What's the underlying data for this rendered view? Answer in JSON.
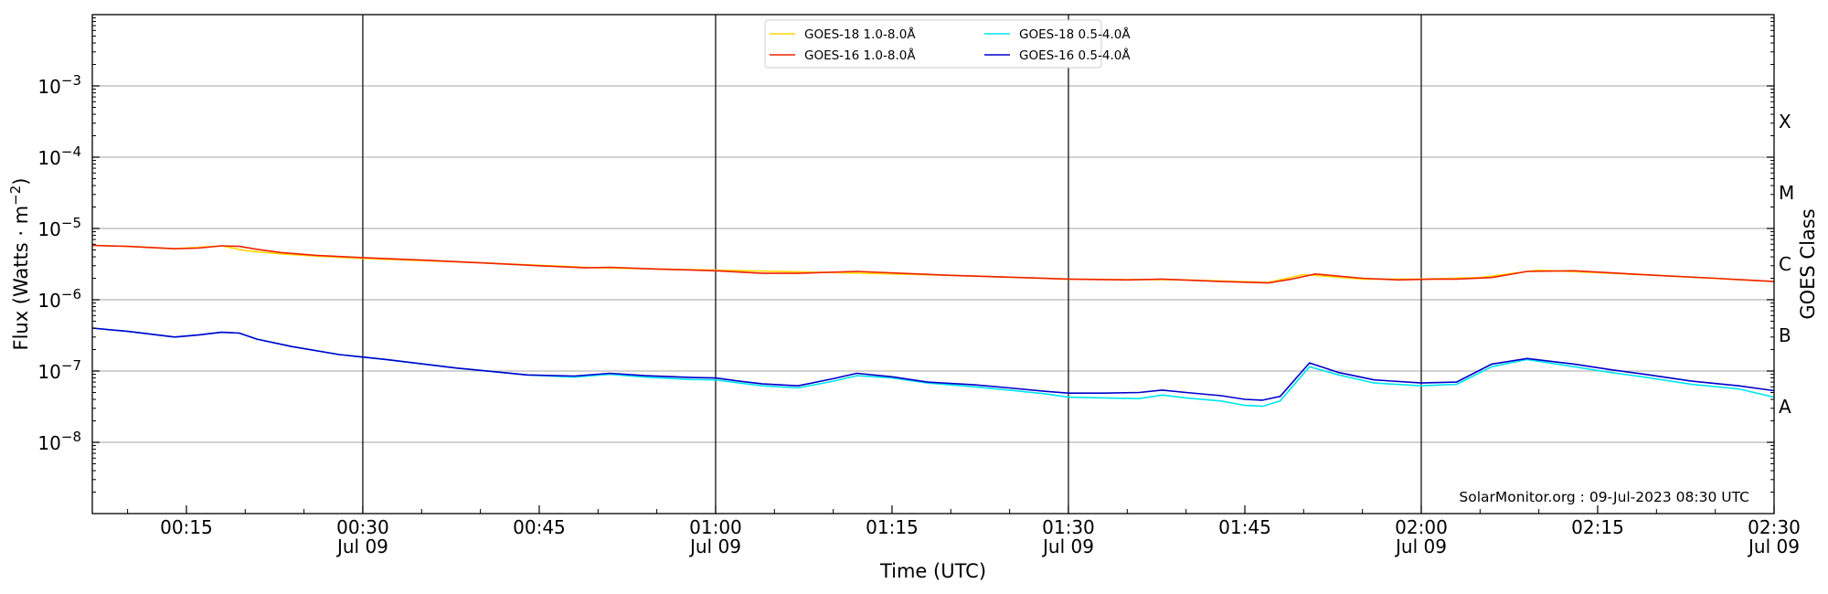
{
  "chart_data": {
    "type": "line",
    "xlabel": "Time (UTC)",
    "ylabel_prefix": "Flux (Watts · m",
    "ylabel_exp": "−2",
    "ylabel_suffix": ")",
    "right_label": "GOES Class",
    "x_range_minutes": [
      7,
      150
    ],
    "y_log_range": [
      -9,
      -2
    ],
    "y_scale": "log",
    "grid": "horizontal at decades",
    "legend_position": "top-center",
    "credit": "SolarMonitor.org : 09-Jul-2023 08:30 UTC",
    "x_ticks": [
      {
        "minute": 15,
        "time": "00:15",
        "date": ""
      },
      {
        "minute": 30,
        "time": "00:30",
        "date": "Jul 09"
      },
      {
        "minute": 45,
        "time": "00:45",
        "date": ""
      },
      {
        "minute": 60,
        "time": "01:00",
        "date": "Jul 09"
      },
      {
        "minute": 75,
        "time": "01:15",
        "date": ""
      },
      {
        "minute": 90,
        "time": "01:30",
        "date": "Jul 09"
      },
      {
        "minute": 105,
        "time": "01:45",
        "date": ""
      },
      {
        "minute": 120,
        "time": "02:00",
        "date": "Jul 09"
      },
      {
        "minute": 135,
        "time": "02:15",
        "date": ""
      },
      {
        "minute": 150,
        "time": "02:30",
        "date": "Jul 09"
      }
    ],
    "vertical_lines_minutes": [
      30,
      60,
      90,
      120
    ],
    "y_ticks": [
      {
        "exp": -8,
        "base": "10",
        "power": "−8"
      },
      {
        "exp": -7,
        "base": "10",
        "power": "−7"
      },
      {
        "exp": -6,
        "base": "10",
        "power": "−6"
      },
      {
        "exp": -5,
        "base": "10",
        "power": "−5"
      },
      {
        "exp": -4,
        "base": "10",
        "power": "−4"
      },
      {
        "exp": -3,
        "base": "10",
        "power": "−3"
      }
    ],
    "goes_classes": [
      {
        "label": "A",
        "center_exp": -7.5
      },
      {
        "label": "B",
        "center_exp": -6.5
      },
      {
        "label": "C",
        "center_exp": -5.5
      },
      {
        "label": "M",
        "center_exp": -4.5
      },
      {
        "label": "X",
        "center_exp": -3.5
      }
    ],
    "series": [
      {
        "name": "GOES-18 1.0-8.0Å",
        "color": "#ffd700",
        "x": [
          7,
          10,
          14,
          18,
          20,
          23,
          26,
          30,
          40,
          50,
          60,
          70,
          80,
          90,
          100,
          107,
          110,
          115,
          120,
          125,
          130,
          140,
          150
        ],
        "y": [
          5.8e-06,
          5.6e-06,
          5.2e-06,
          5.7e-06,
          4.9e-06,
          4.4e-06,
          4.1e-06,
          3.8e-06,
          3.3e-06,
          2.8e-06,
          2.6e-06,
          2.4e-06,
          2.2e-06,
          1.95e-06,
          1.9e-06,
          1.75e-06,
          2.25e-06,
          1.95e-06,
          1.95e-06,
          2.05e-06,
          2.6e-06,
          2.2e-06,
          1.8e-06
        ]
      },
      {
        "name": "GOES-16 1.0-8.0Å",
        "color": "#ee2200",
        "x": [
          7,
          10,
          14,
          16,
          18,
          19.5,
          21,
          23,
          26,
          30,
          35,
          40,
          45,
          49,
          51,
          55,
          60,
          64,
          67,
          72,
          80,
          90,
          95,
          98,
          103,
          107,
          109,
          111,
          115,
          118,
          121,
          123,
          126,
          129,
          133,
          140,
          145,
          150
        ],
        "y": [
          5.8e-06,
          5.6e-06,
          5.2e-06,
          5.3e-06,
          5.7e-06,
          5.6e-06,
          5.1e-06,
          4.6e-06,
          4.2e-06,
          3.9e-06,
          3.6e-06,
          3.3e-06,
          3e-06,
          2.8e-06,
          2.85e-06,
          2.7e-06,
          2.55e-06,
          2.35e-06,
          2.35e-06,
          2.5e-06,
          2.2e-06,
          1.95e-06,
          1.9e-06,
          1.95e-06,
          1.8e-06,
          1.72e-06,
          1.95e-06,
          2.3e-06,
          2e-06,
          1.9e-06,
          1.95e-06,
          1.95e-06,
          2.05e-06,
          2.5e-06,
          2.55e-06,
          2.2e-06,
          2e-06,
          1.8e-06
        ]
      },
      {
        "name": "GOES-18 0.5-4.0Å",
        "color": "#00e5ee",
        "x": [
          7,
          10,
          14,
          16,
          18,
          19.5,
          21,
          24,
          28,
          32,
          38,
          44,
          48,
          51,
          54,
          58,
          60,
          62,
          64,
          67,
          70,
          72,
          75,
          78,
          82,
          85,
          88,
          90,
          93,
          96,
          98,
          100,
          103,
          105,
          106.5,
          108,
          110.5,
          113,
          116,
          120,
          123,
          126,
          129,
          133,
          136,
          139,
          143,
          147,
          150
        ],
        "y": [
          4e-07,
          3.6e-07,
          3e-07,
          3.2e-07,
          3.5e-07,
          3.4e-07,
          2.8e-07,
          2.2e-07,
          1.7e-07,
          1.45e-07,
          1.1e-07,
          8.8e-08,
          8.2e-08,
          9e-08,
          8.2e-08,
          7.6e-08,
          7.5e-08,
          6.8e-08,
          6.2e-08,
          5.8e-08,
          7.2e-08,
          8.6e-08,
          8e-08,
          6.8e-08,
          6e-08,
          5.4e-08,
          4.8e-08,
          4.3e-08,
          4.2e-08,
          4.1e-08,
          4.6e-08,
          4.2e-08,
          3.8e-08,
          3.3e-08,
          3.2e-08,
          3.8e-08,
          1.15e-07,
          8.8e-08,
          6.8e-08,
          6.2e-08,
          6.5e-08,
          1.15e-07,
          1.45e-07,
          1.15e-07,
          9.6e-08,
          8.2e-08,
          6.5e-08,
          5.6e-08,
          4.3e-08
        ]
      },
      {
        "name": "GOES-16 0.5-4.0Å",
        "color": "#0000cc",
        "x": [
          7,
          10,
          14,
          16,
          18,
          19.5,
          21,
          24,
          28,
          32,
          38,
          44,
          48,
          51,
          54,
          58,
          60,
          62,
          64,
          67,
          70,
          72,
          75,
          78,
          82,
          85,
          88,
          90,
          93,
          96,
          98,
          100,
          103,
          105,
          106.5,
          108,
          110.5,
          113,
          116,
          120,
          123,
          126,
          129,
          133,
          136,
          139,
          143,
          147,
          150
        ],
        "y": [
          4e-07,
          3.6e-07,
          3e-07,
          3.2e-07,
          3.5e-07,
          3.4e-07,
          2.8e-07,
          2.2e-07,
          1.7e-07,
          1.45e-07,
          1.1e-07,
          8.8e-08,
          8.5e-08,
          9.3e-08,
          8.6e-08,
          8.1e-08,
          8e-08,
          7.2e-08,
          6.6e-08,
          6.2e-08,
          7.8e-08,
          9.3e-08,
          8.3e-08,
          7e-08,
          6.4e-08,
          5.8e-08,
          5.2e-08,
          4.9e-08,
          4.9e-08,
          5e-08,
          5.4e-08,
          5e-08,
          4.5e-08,
          4e-08,
          3.9e-08,
          4.4e-08,
          1.3e-07,
          9.5e-08,
          7.5e-08,
          6.8e-08,
          7e-08,
          1.25e-07,
          1.5e-07,
          1.25e-07,
          1.05e-07,
          9e-08,
          7.2e-08,
          6.2e-08,
          5.3e-08
        ]
      }
    ]
  }
}
